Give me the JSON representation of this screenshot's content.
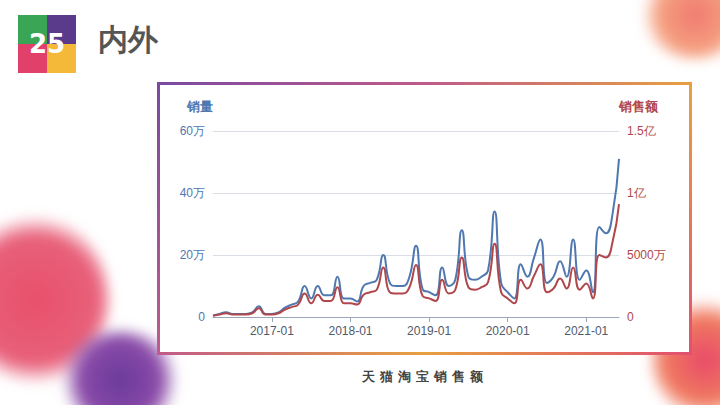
{
  "header": {
    "number": "25",
    "title": "内外"
  },
  "caption": "天猫淘宝销售额",
  "chart_data": {
    "type": "line",
    "categories": [
      null,
      null,
      null,
      null,
      null,
      null,
      null,
      null,
      null,
      "2017-01",
      null,
      null,
      null,
      null,
      null,
      null,
      null,
      null,
      null,
      null,
      null,
      "2018-01",
      null,
      null,
      null,
      null,
      null,
      null,
      null,
      null,
      null,
      null,
      null,
      "2019-01",
      null,
      null,
      null,
      null,
      null,
      null,
      null,
      null,
      null,
      null,
      null,
      "2020-01",
      null,
      null,
      null,
      null,
      null,
      null,
      null,
      null,
      null,
      null,
      null,
      "2021-01",
      null,
      null,
      null,
      null,
      null
    ],
    "y_label": "销量",
    "y2_label": "销售额",
    "ylim": [
      0,
      600000
    ],
    "yticks": [
      0,
      {
        "value": 200000,
        "label": "20万"
      },
      {
        "value": 400000,
        "label": "40万"
      },
      {
        "value": 600000,
        "label": "60万"
      }
    ],
    "y2lim": [
      0,
      150000000
    ],
    "y2ticks": [
      0,
      {
        "value": 50000000,
        "label": "5000万"
      },
      {
        "value": 100000000,
        "label": "1亿"
      },
      {
        "value": 150000000,
        "label": "1.5亿"
      }
    ],
    "grid": true,
    "series": [
      {
        "name": "销量",
        "color": "#4f78b0",
        "values": [
          5000,
          10000,
          15000,
          10000,
          10000,
          10000,
          15000,
          35000,
          10000,
          10000,
          15000,
          30000,
          40000,
          50000,
          100000,
          60000,
          100000,
          70000,
          70000,
          130000,
          60000,
          60000,
          50000,
          100000,
          110000,
          120000,
          200000,
          110000,
          100000,
          100000,
          130000,
          230000,
          90000,
          80000,
          70000,
          160000,
          100000,
          120000,
          280000,
          130000,
          120000,
          130000,
          150000,
          340000,
          110000,
          80000,
          60000,
          170000,
          130000,
          190000,
          250000,
          110000,
          130000,
          180000,
          130000,
          250000,
          120000,
          150000,
          80000,
          290000,
          270000,
          330000,
          510000
        ]
      },
      {
        "name": "销售额",
        "color": "#b0474b",
        "axis": "y2",
        "values": [
          1000000,
          2000000,
          3000000,
          2000000,
          2000000,
          2000000,
          3000000,
          7000000,
          2000000,
          2000000,
          3000000,
          6000000,
          8000000,
          10000000,
          19000000,
          11000000,
          18000000,
          13000000,
          13000000,
          24000000,
          11000000,
          11000000,
          10000000,
          18000000,
          20000000,
          22000000,
          40000000,
          20000000,
          19000000,
          19000000,
          24000000,
          42000000,
          17000000,
          15000000,
          13000000,
          30000000,
          19000000,
          22000000,
          48000000,
          24000000,
          22000000,
          24000000,
          28000000,
          59000000,
          20000000,
          15000000,
          11000000,
          30000000,
          23000000,
          33000000,
          42500000,
          20000000,
          23000000,
          31000000,
          23000000,
          40000000,
          22000000,
          27000000,
          15000000,
          50000000,
          48000000,
          60000000,
          91000000
        ]
      }
    ]
  }
}
